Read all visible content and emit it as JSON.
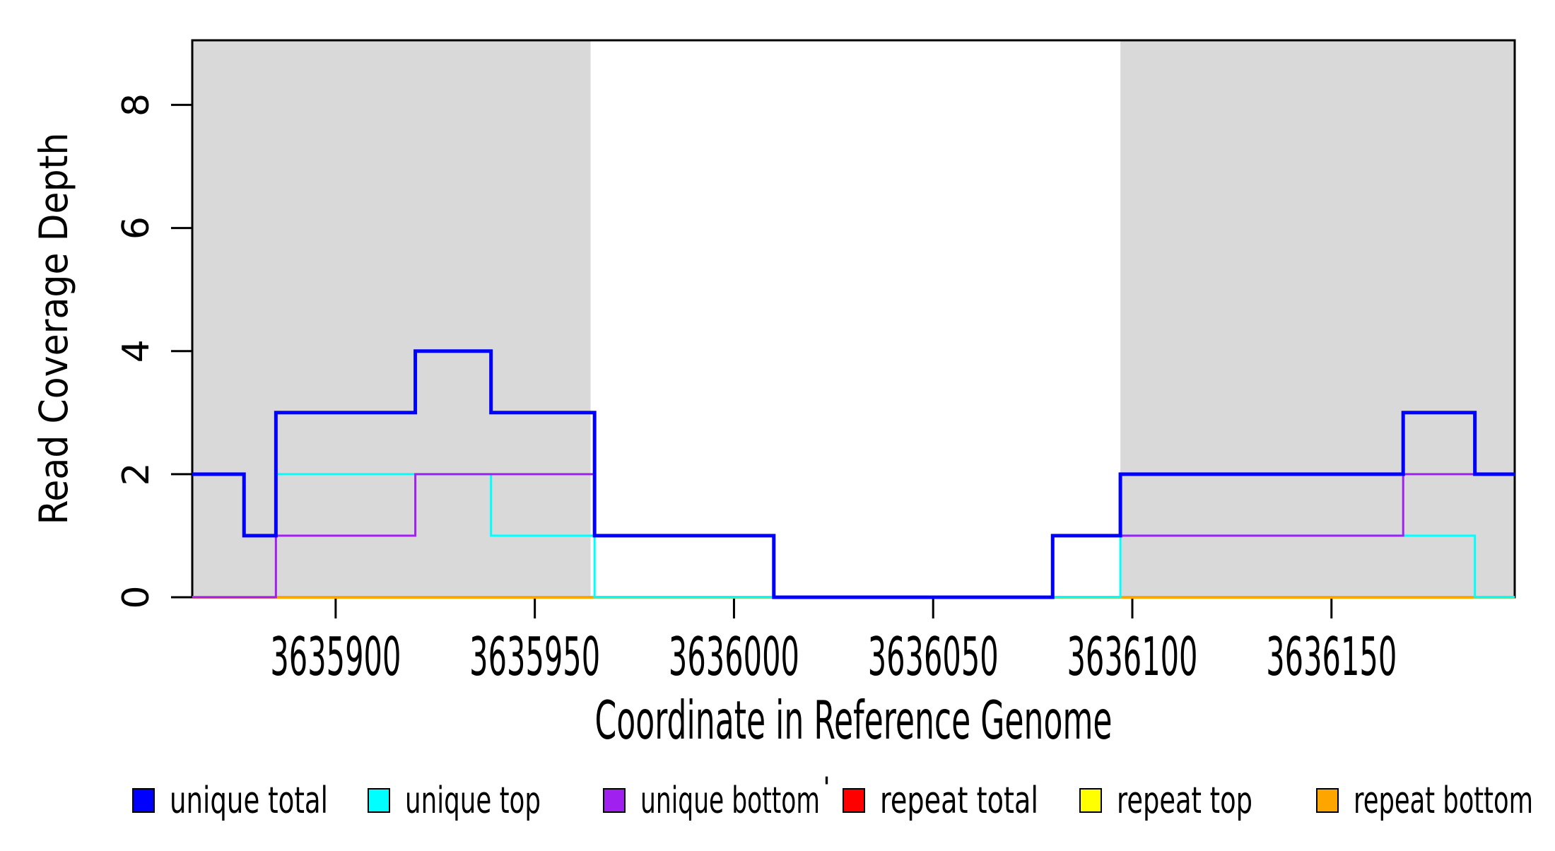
{
  "figure": {
    "background_color": "#FFFFFF",
    "plot_background_color": "#FFFFFF",
    "shading_color": "#D9D9D9",
    "axis_color": "#000000"
  },
  "chart_data": {
    "type": "line",
    "step_mode": "post",
    "title": "",
    "xlabel": "Coordinate in Reference Genome",
    "ylabel": "Read Coverage Depth",
    "xlim": [
      3635864,
      3636196
    ],
    "ylim": [
      0,
      9.05
    ],
    "xticks": [
      3635900,
      3635950,
      3636000,
      3636050,
      3636100,
      3636150
    ],
    "yticks": [
      0,
      2,
      4,
      6,
      8
    ],
    "grid": false,
    "shaded_regions": [
      {
        "name": "repeat-region-left",
        "x_start": 3635864,
        "x_end": 3635964,
        "color": "#D9D9D9"
      },
      {
        "name": "repeat-region-right",
        "x_start": 3636097,
        "x_end": 3636196,
        "color": "#D9D9D9"
      }
    ],
    "series": [
      {
        "name": "repeat total",
        "color": "#FF0000",
        "line_width": 3,
        "steps": [
          [
            3635864,
            0
          ]
        ]
      },
      {
        "name": "repeat top",
        "color": "#FFFF00",
        "line_width": 3,
        "steps": [
          [
            3635864,
            0
          ]
        ]
      },
      {
        "name": "repeat bottom",
        "color": "#FFA500",
        "line_width": 4,
        "steps": [
          [
            3635864,
            0
          ]
        ]
      },
      {
        "name": "unique top",
        "color": "#00FFFF",
        "line_width": 3,
        "steps": [
          [
            3635864,
            2
          ],
          [
            3635877,
            1
          ],
          [
            3635885,
            2
          ],
          [
            3635939,
            1
          ],
          [
            3635965,
            0
          ],
          [
            3636097,
            1
          ],
          [
            3636186,
            0
          ]
        ]
      },
      {
        "name": "unique bottom",
        "color": "#A020F0",
        "line_width": 3,
        "steps": [
          [
            3635864,
            0
          ],
          [
            3635885,
            1
          ],
          [
            3635920,
            2
          ],
          [
            3635965,
            1
          ],
          [
            3636010,
            0
          ],
          [
            3636080,
            1
          ],
          [
            3636168,
            2
          ]
        ]
      },
      {
        "name": "unique total",
        "color": "#0000FF",
        "line_width": 5,
        "steps": [
          [
            3635864,
            2
          ],
          [
            3635877,
            1
          ],
          [
            3635885,
            3
          ],
          [
            3635920,
            4
          ],
          [
            3635939,
            3
          ],
          [
            3635965,
            1
          ],
          [
            3636010,
            0
          ],
          [
            3636080,
            1
          ],
          [
            3636097,
            2
          ],
          [
            3636168,
            3
          ],
          [
            3636186,
            2
          ]
        ]
      }
    ],
    "legend": {
      "position": "bottom",
      "entries": [
        {
          "label": "unique total",
          "color": "#0000FF"
        },
        {
          "label": "unique top",
          "color": "#00FFFF"
        },
        {
          "label": "unique bottom",
          "color": "#A020F0"
        },
        {
          "label": "repeat total",
          "color": "#FF0000"
        },
        {
          "label": "repeat top",
          "color": "#FFFF00"
        },
        {
          "label": "repeat bottom",
          "color": "#FFA500"
        }
      ]
    }
  },
  "annotations": {
    "stray_mark": "'"
  }
}
